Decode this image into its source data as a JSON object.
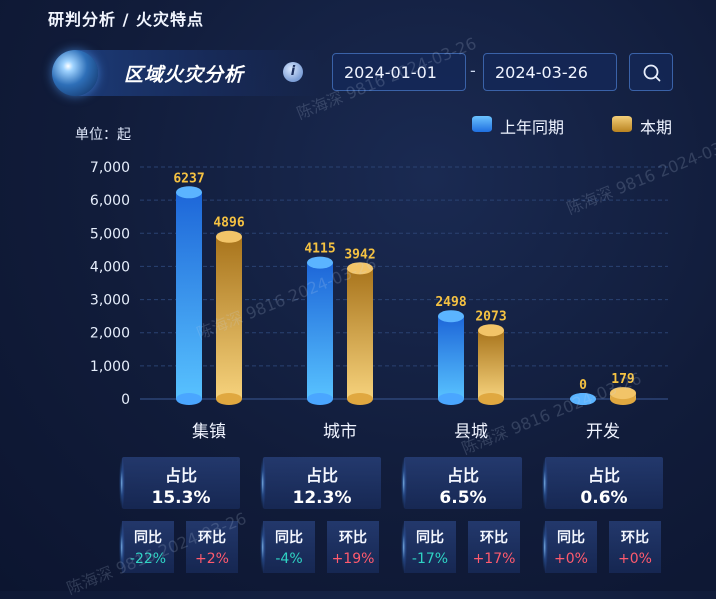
{
  "breadcrumb": "研判分析 / 火灾特点",
  "header": {
    "title": "区域火灾分析",
    "info_icon": "info-icon"
  },
  "date_range": {
    "start": "2024-01-01",
    "separator": "-",
    "end": "2024-03-26"
  },
  "search_icon": "search-icon",
  "colors": {
    "last_year": "#2f8fff",
    "current": "#e8b048",
    "label_yellow": "#f5c242",
    "neg": "#2fd3c4",
    "pos": "#ff5a6e"
  },
  "chart_data": {
    "type": "bar",
    "unit_label": "单位：起",
    "categories": [
      "集镇",
      "城市",
      "县城",
      "开发"
    ],
    "series": [
      {
        "name": "上年同期",
        "values": [
          6237,
          4115,
          2498,
          0
        ]
      },
      {
        "name": "本期",
        "values": [
          4896,
          3942,
          2073,
          179
        ]
      }
    ],
    "y_ticks": [
      "7,000",
      "6,000",
      "5,000",
      "4,000",
      "3,000",
      "2,000",
      "1,000",
      "0"
    ],
    "ylim": [
      0,
      7000
    ],
    "legend_position": "top-right"
  },
  "stats": [
    {
      "label": "占比",
      "value": "15.3%",
      "yoy_label": "同比",
      "yoy": "-22%",
      "mom_label": "环比",
      "mom": "+2%"
    },
    {
      "label": "占比",
      "value": "12.3%",
      "yoy_label": "同比",
      "yoy": "-4%",
      "mom_label": "环比",
      "mom": "+19%"
    },
    {
      "label": "占比",
      "value": "6.5%",
      "yoy_label": "同比",
      "yoy": "-17%",
      "mom_label": "环比",
      "mom": "+17%"
    },
    {
      "label": "占比",
      "value": "0.6%",
      "yoy_label": "同比",
      "yoy": "+0%",
      "mom_label": "环比",
      "mom": "+0%"
    }
  ],
  "watermark": "陈海深 9816 2024-03-26"
}
